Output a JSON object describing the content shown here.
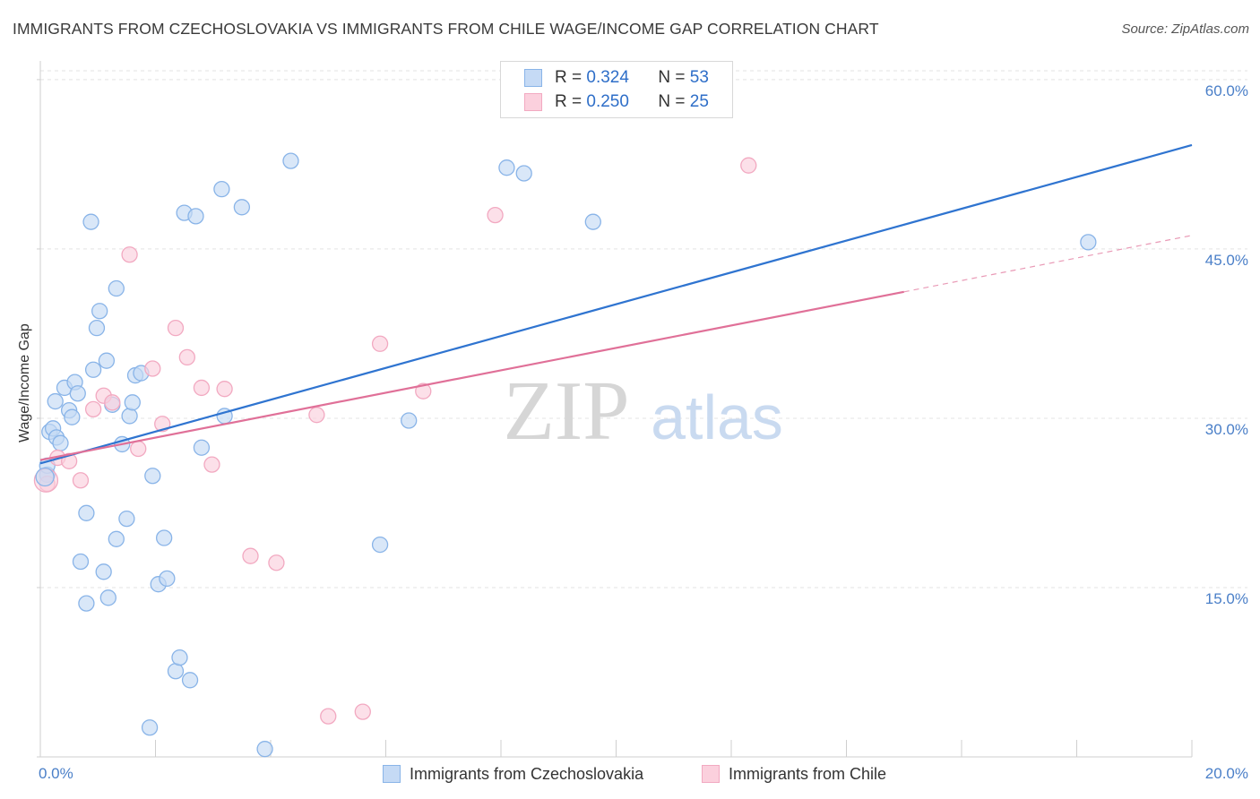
{
  "title": "IMMIGRANTS FROM CZECHOSLOVAKIA VS IMMIGRANTS FROM CHILE WAGE/INCOME GAP CORRELATION CHART",
  "source": "Source: ZipAtlas.com",
  "watermark": {
    "zip": "ZIP",
    "atlas": "atlas"
  },
  "legend_top": [
    {
      "r_label": "R =",
      "r_value": "0.324",
      "n_label": "N =",
      "n_value": "53"
    },
    {
      "r_label": "R =",
      "r_value": "0.250",
      "n_label": "N =",
      "n_value": "25"
    }
  ],
  "chart_data": {
    "type": "scatter",
    "title": "IMMIGRANTS FROM CZECHOSLOVAKIA VS IMMIGRANTS FROM CHILE WAGE/INCOME GAP CORRELATION CHART",
    "xlabel": "",
    "ylabel": "Wage/Income Gap",
    "xlim": [
      0,
      20
    ],
    "ylim": [
      0,
      61.5
    ],
    "x_tick_labels": [
      "0.0%",
      "20.0%"
    ],
    "y_ticks": [
      15,
      30,
      45,
      60
    ],
    "y_tick_labels": [
      "15.0%",
      "30.0%",
      "45.0%",
      "60.0%"
    ],
    "grid": true,
    "legend_position": "bottom",
    "series": [
      {
        "name": "Immigrants from Czechoslovakia",
        "color": "#89b4e8",
        "fill": "#c5daf5",
        "line_color": "#2f74d0",
        "R": 0.324,
        "N": 53,
        "trend": {
          "x": [
            0,
            20
          ],
          "y": [
            26.0,
            54.2
          ]
        },
        "points": [
          [
            0.12,
            25.0
          ],
          [
            0.16,
            28.8
          ],
          [
            0.22,
            29.1
          ],
          [
            0.28,
            28.3
          ],
          [
            0.35,
            27.8
          ],
          [
            0.26,
            31.5
          ],
          [
            0.42,
            32.7
          ],
          [
            0.5,
            30.7
          ],
          [
            0.55,
            30.1
          ],
          [
            0.6,
            33.2
          ],
          [
            0.65,
            32.2
          ],
          [
            0.7,
            17.3
          ],
          [
            0.8,
            13.6
          ],
          [
            0.8,
            21.6
          ],
          [
            0.88,
            47.4
          ],
          [
            0.92,
            34.3
          ],
          [
            0.98,
            38.0
          ],
          [
            1.03,
            39.5
          ],
          [
            1.1,
            16.4
          ],
          [
            1.15,
            35.1
          ],
          [
            1.18,
            14.1
          ],
          [
            1.25,
            31.2
          ],
          [
            1.32,
            19.3
          ],
          [
            1.32,
            41.5
          ],
          [
            1.42,
            27.7
          ],
          [
            1.5,
            21.1
          ],
          [
            1.55,
            30.2
          ],
          [
            1.6,
            31.4
          ],
          [
            1.65,
            33.8
          ],
          [
            1.75,
            34.0
          ],
          [
            1.95,
            24.9
          ],
          [
            2.05,
            15.3
          ],
          [
            2.15,
            19.4
          ],
          [
            2.2,
            15.8
          ],
          [
            2.35,
            7.6
          ],
          [
            2.42,
            8.8
          ],
          [
            2.5,
            48.2
          ],
          [
            2.6,
            6.8
          ],
          [
            2.7,
            47.9
          ],
          [
            2.8,
            27.4
          ],
          [
            3.15,
            50.3
          ],
          [
            3.2,
            30.2
          ],
          [
            3.5,
            48.7
          ],
          [
            3.9,
            0.7
          ],
          [
            4.35,
            52.8
          ],
          [
            5.9,
            18.8
          ],
          [
            6.4,
            29.8
          ],
          [
            8.1,
            52.2
          ],
          [
            8.4,
            51.7
          ],
          [
            9.6,
            47.4
          ],
          [
            18.2,
            45.6
          ],
          [
            1.9,
            2.6
          ],
          [
            0.12,
            25.8
          ]
        ]
      },
      {
        "name": "Immigrants from Chile",
        "color": "#f2a9c1",
        "fill": "#fbd0dd",
        "line_color": "#e07098",
        "R": 0.25,
        "N": 25,
        "trend": {
          "x": [
            0,
            15
          ],
          "y": [
            26.3,
            41.2
          ]
        },
        "trend_dashed": {
          "x": [
            15,
            20
          ],
          "y": [
            41.2,
            46.2
          ]
        },
        "points": [
          [
            0.12,
            24.2
          ],
          [
            0.3,
            26.5
          ],
          [
            0.5,
            26.2
          ],
          [
            0.7,
            24.5
          ],
          [
            0.92,
            30.8
          ],
          [
            1.1,
            32.0
          ],
          [
            1.25,
            31.4
          ],
          [
            1.55,
            44.5
          ],
          [
            1.7,
            27.3
          ],
          [
            1.95,
            34.4
          ],
          [
            2.12,
            29.5
          ],
          [
            2.35,
            38.0
          ],
          [
            2.55,
            35.4
          ],
          [
            2.8,
            32.7
          ],
          [
            2.98,
            25.9
          ],
          [
            3.2,
            32.6
          ],
          [
            3.65,
            17.8
          ],
          [
            4.1,
            17.2
          ],
          [
            4.8,
            30.3
          ],
          [
            5.0,
            3.6
          ],
          [
            5.6,
            4.0
          ],
          [
            5.9,
            36.6
          ],
          [
            6.65,
            32.4
          ],
          [
            7.9,
            48.0
          ],
          [
            12.3,
            52.4
          ]
        ]
      }
    ]
  }
}
